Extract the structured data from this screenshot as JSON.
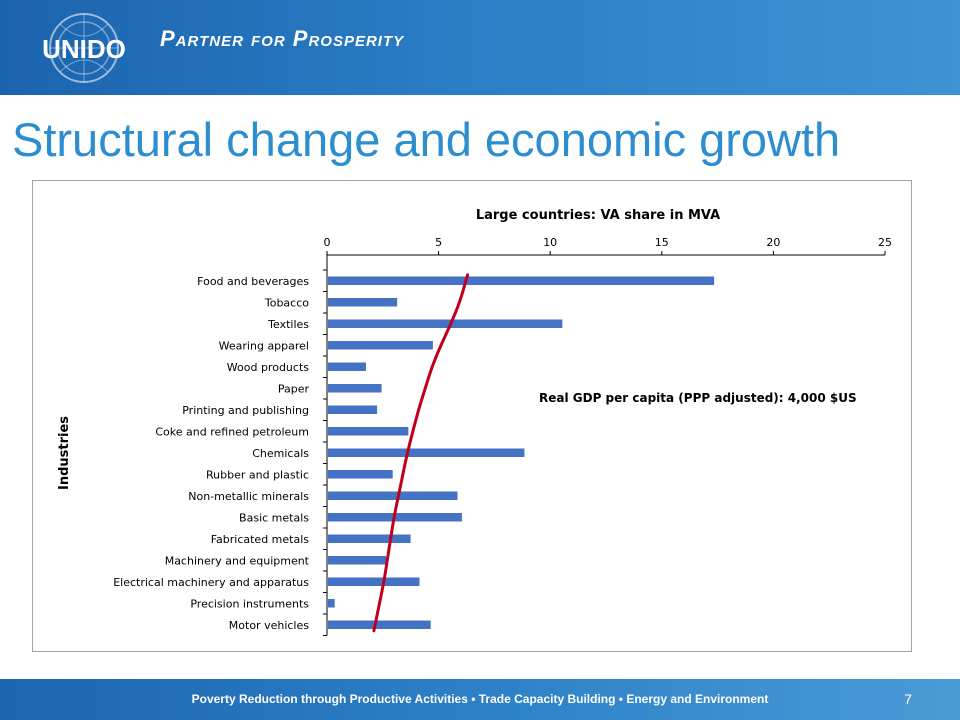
{
  "header": {
    "logo_text": "UNIDO",
    "tagline": "Partner for Prosperity"
  },
  "slide": {
    "title": "Structural change and economic growth",
    "page_number": "7"
  },
  "footer": {
    "text": "Poverty Reduction through Productive Activities  •  Trade Capacity Building  •  Energy and Environment"
  },
  "colors": {
    "bar": "#4472c4",
    "curve": "#c0001b",
    "title": "#2c8ed0",
    "header": "#2a7cc4"
  },
  "chart_data": {
    "type": "bar",
    "orientation": "horizontal",
    "title": "Large countries: VA share in MVA",
    "ylabel": "Industries",
    "xlabel": "",
    "xlim": [
      0,
      25
    ],
    "xticks": [
      0,
      5,
      10,
      15,
      20,
      25
    ],
    "x_axis_position": "top",
    "grid": false,
    "annotation": "Real GDP per capita (PPP adjusted): 4,000 $US",
    "categories": [
      "Food and beverages",
      "Tobacco",
      "Textiles",
      "Wearing apparel",
      "Wood products",
      "Paper",
      "Printing and publishing",
      "Coke and refined petroleum",
      "Chemicals",
      "Rubber and plastic",
      "Non-metallic minerals",
      "Basic metals",
      "Fabricated metals",
      "Machinery and equipment",
      "Electrical machinery and apparatus",
      "Precision instruments",
      "Motor vehicles"
    ],
    "values": [
      17.3,
      3.1,
      10.5,
      4.7,
      1.7,
      2.4,
      2.2,
      3.6,
      8.8,
      2.9,
      5.8,
      6.0,
      3.7,
      2.6,
      4.1,
      0.3,
      4.6
    ],
    "curve_values": [
      6.3,
      5.95,
      5.55,
      5.1,
      4.7,
      4.4,
      4.1,
      3.85,
      3.6,
      3.4,
      3.2,
      3.0,
      2.85,
      2.7,
      2.55,
      2.35,
      2.1
    ]
  }
}
